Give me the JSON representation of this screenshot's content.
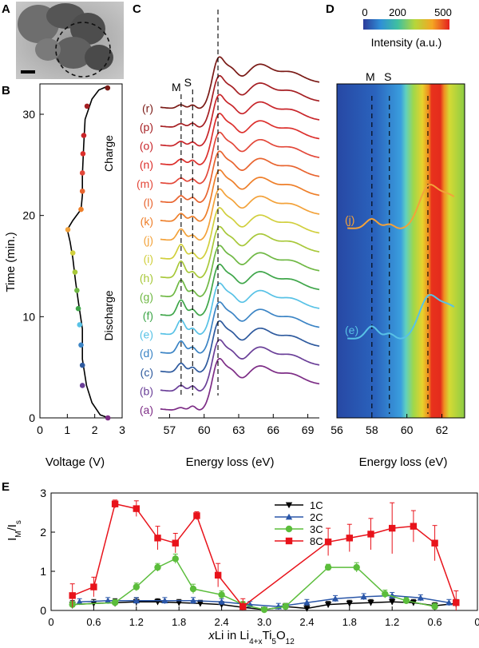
{
  "panel_labels": {
    "A": "A",
    "B": "B",
    "C": "C",
    "D": "D",
    "E": "E"
  },
  "colors": {
    "r": "#7a1a16",
    "p": "#a51f23",
    "o": "#c8252a",
    "n": "#dc2f2c",
    "m": "#e3483a",
    "l": "#e8642f",
    "k": "#ee7f2a",
    "j": "#f3a23a",
    "i": "#d1cf3d",
    "h": "#a8c83a",
    "g": "#6fb844",
    "f": "#3fa64a",
    "e": "#58c2e6",
    "d": "#3b84c5",
    "c": "#2e5a9e",
    "b": "#6a3f98",
    "a": "#7d2d86",
    "line_1C": "#000000",
    "line_2C": "#2a56a8",
    "line_3C": "#5bbd3b",
    "line_8C": "#e8131b"
  },
  "chart_data": [
    {
      "panel": "B",
      "type": "line",
      "xlabel": "Voltage (V)",
      "ylabel": "Time (min.)",
      "xlim": [
        0,
        3
      ],
      "ylim": [
        0,
        33
      ],
      "xticks": [
        0,
        1,
        2,
        3
      ],
      "yticks": [
        0,
        10,
        20,
        30
      ],
      "annotations": [
        "Charge",
        "Discharge"
      ],
      "curve": [
        [
          2.5,
          0.0
        ],
        [
          2.2,
          0.3
        ],
        [
          1.9,
          1.5
        ],
        [
          1.7,
          3.2
        ],
        [
          1.55,
          5.8
        ],
        [
          1.55,
          8.8
        ],
        [
          1.4,
          11.5
        ],
        [
          1.3,
          13.5
        ],
        [
          1.2,
          15.8
        ],
        [
          1.1,
          17.4
        ],
        [
          1.0,
          18.6
        ],
        [
          1.2,
          19.5
        ],
        [
          1.5,
          20.6
        ],
        [
          1.55,
          22.0
        ],
        [
          1.55,
          24.0
        ],
        [
          1.6,
          27.0
        ],
        [
          1.65,
          29.5
        ],
        [
          1.9,
          31.5
        ],
        [
          2.15,
          32.4
        ],
        [
          2.5,
          32.8
        ]
      ],
      "points": [
        {
          "v": 2.48,
          "t": 0.0,
          "c": "a"
        },
        {
          "v": 1.55,
          "t": 3.2,
          "c": "b"
        },
        {
          "v": 1.55,
          "t": 5.2,
          "c": "c"
        },
        {
          "v": 1.5,
          "t": 7.2,
          "c": "d"
        },
        {
          "v": 1.45,
          "t": 9.2,
          "c": "e"
        },
        {
          "v": 1.4,
          "t": 10.8,
          "c": "f"
        },
        {
          "v": 1.35,
          "t": 12.6,
          "c": "g"
        },
        {
          "v": 1.28,
          "t": 14.4,
          "c": "h"
        },
        {
          "v": 1.2,
          "t": 16.3,
          "c": "i"
        },
        {
          "v": 1.02,
          "t": 18.6,
          "c": "j"
        },
        {
          "v": 1.5,
          "t": 20.6,
          "c": "k"
        },
        {
          "v": 1.55,
          "t": 22.4,
          "c": "l"
        },
        {
          "v": 1.55,
          "t": 24.2,
          "c": "m"
        },
        {
          "v": 1.57,
          "t": 26.1,
          "c": "n"
        },
        {
          "v": 1.6,
          "t": 27.9,
          "c": "o"
        },
        {
          "v": 1.72,
          "t": 30.8,
          "c": "p"
        },
        {
          "v": 2.47,
          "t": 32.6,
          "c": "r"
        }
      ]
    },
    {
      "panel": "C",
      "type": "line",
      "xlabel": "Energy loss (eV)",
      "ylabel": "",
      "xlim": [
        56,
        70
      ],
      "xticks": [
        57,
        60,
        63,
        66,
        69
      ],
      "markers": [
        {
          "label": "M",
          "x": 58.0
        },
        {
          "label": "S",
          "x": 59.0
        },
        {
          "label": "",
          "x": 61.2
        }
      ],
      "series": [
        {
          "name": "(a)",
          "c": "a",
          "m": 0.15,
          "s": 0.25
        },
        {
          "name": "(b)",
          "c": "b",
          "m": 0.3,
          "s": 0.3
        },
        {
          "name": "(c)",
          "c": "c",
          "m": 0.45,
          "s": 0.3
        },
        {
          "name": "(d)",
          "c": "d",
          "m": 0.6,
          "s": 0.35
        },
        {
          "name": "(e)",
          "c": "e",
          "m": 0.7,
          "s": 0.35
        },
        {
          "name": "(f)",
          "c": "f",
          "m": 0.75,
          "s": 0.35
        },
        {
          "name": "(g)",
          "c": "g",
          "m": 0.8,
          "s": 0.35
        },
        {
          "name": "(h)",
          "c": "h",
          "m": 0.8,
          "s": 0.35
        },
        {
          "name": "(i)",
          "c": "i",
          "m": 0.7,
          "s": 0.35
        },
        {
          "name": "(j)",
          "c": "j",
          "m": 0.55,
          "s": 0.3
        },
        {
          "name": "(k)",
          "c": "k",
          "m": 0.4,
          "s": 0.3
        },
        {
          "name": "(l)",
          "c": "l",
          "m": 0.35,
          "s": 0.3
        },
        {
          "name": "(m)",
          "c": "m",
          "m": 0.3,
          "s": 0.28
        },
        {
          "name": "(n)",
          "c": "n",
          "m": 0.3,
          "s": 0.28
        },
        {
          "name": "(o)",
          "c": "o",
          "m": 0.25,
          "s": 0.25
        },
        {
          "name": "(p)",
          "c": "p",
          "m": 0.2,
          "s": 0.25
        },
        {
          "name": "(r)",
          "c": "r",
          "m": 0.2,
          "s": 0.22
        }
      ]
    },
    {
      "panel": "D",
      "type": "heatmap",
      "xlabel": "Energy loss (eV)",
      "xlim": [
        56,
        63.3
      ],
      "xticks": [
        56,
        58,
        60,
        62
      ],
      "colorbar": {
        "label": "Intensity (a.u.)",
        "ticks": [
          0,
          200,
          500
        ]
      },
      "markers": [
        {
          "label": "M",
          "x": 58.0
        },
        {
          "label": "S",
          "x": 59.0
        },
        {
          "label": "",
          "x": 61.2
        }
      ],
      "overlays": [
        {
          "name": "(j)",
          "c": "j"
        },
        {
          "name": "(e)",
          "c": "e"
        }
      ]
    },
    {
      "panel": "E",
      "type": "line",
      "xlabel": "xLi in Li4+xTi5O12",
      "ylabel": "IM/Is",
      "xlim": [
        0,
        6
      ],
      "ylim": [
        0,
        3
      ],
      "xtick_labels": [
        "0",
        "0.6",
        "1.2",
        "1.8",
        "2.4",
        "3.0",
        "2.4",
        "1.8",
        "1.2",
        "0.6",
        "0"
      ],
      "yticks": [
        0,
        1,
        2,
        3
      ],
      "series": [
        {
          "name": "1C",
          "c": "line_1C",
          "marker": "triangle-down",
          "x": [
            0.3,
            0.6,
            0.9,
            1.2,
            1.5,
            1.8,
            2.1,
            2.4,
            2.7,
            3.0,
            3.3,
            3.6,
            3.9,
            4.2,
            4.5,
            4.8,
            5.1,
            5.4,
            5.7
          ],
          "y": [
            0.15,
            0.18,
            0.2,
            0.22,
            0.22,
            0.2,
            0.18,
            0.15,
            0.08,
            0.02,
            0.1,
            0.05,
            0.15,
            0.18,
            0.2,
            0.22,
            0.2,
            0.12,
            0.18
          ],
          "err": [
            0.1,
            0.1,
            0.1,
            0.1,
            0.08,
            0.08,
            0.08,
            0.08,
            0.08,
            0.05,
            0.08,
            0.08,
            0.08,
            0.08,
            0.08,
            0.08,
            0.08,
            0.08,
            0.1
          ]
        },
        {
          "name": "2C",
          "c": "line_2C",
          "marker": "triangle-up",
          "x": [
            0.4,
            0.8,
            1.2,
            1.6,
            2.0,
            2.4,
            2.8,
            3.2,
            3.6,
            4.0,
            4.4,
            4.8,
            5.2,
            5.6
          ],
          "y": [
            0.22,
            0.25,
            0.25,
            0.25,
            0.25,
            0.22,
            0.15,
            0.1,
            0.2,
            0.3,
            0.35,
            0.38,
            0.32,
            0.2
          ],
          "err": [
            0.08,
            0.08,
            0.08,
            0.08,
            0.08,
            0.08,
            0.08,
            0.08,
            0.08,
            0.08,
            0.08,
            0.08,
            0.08,
            0.08
          ]
        },
        {
          "name": "3C",
          "c": "line_3C",
          "marker": "circle",
          "x": [
            0.3,
            0.9,
            1.2,
            1.5,
            1.75,
            2.0,
            2.4,
            2.7,
            3.0,
            3.3,
            3.9,
            4.3,
            4.7,
            5.0,
            5.4
          ],
          "y": [
            0.15,
            0.2,
            0.6,
            1.1,
            1.32,
            0.55,
            0.4,
            0.15,
            0.02,
            0.1,
            1.1,
            1.1,
            0.42,
            0.25,
            0.1
          ],
          "err": [
            0.08,
            0.08,
            0.1,
            0.1,
            0.12,
            0.12,
            0.1,
            0.08,
            0.05,
            0.08,
            0.08,
            0.12,
            0.1,
            0.08,
            0.08
          ]
        },
        {
          "name": "8C",
          "c": "line_8C",
          "marker": "square",
          "x": [
            0.3,
            0.6,
            0.9,
            1.2,
            1.5,
            1.75,
            2.05,
            2.35,
            2.7,
            3.9,
            4.2,
            4.5,
            4.8,
            5.1,
            5.4,
            5.7
          ],
          "y": [
            0.38,
            0.6,
            2.72,
            2.6,
            1.85,
            1.72,
            2.42,
            0.9,
            0.1,
            1.75,
            1.85,
            1.95,
            2.1,
            2.15,
            1.72,
            0.2
          ],
          "err": [
            0.3,
            0.25,
            0.1,
            0.2,
            0.3,
            0.25,
            0.1,
            0.3,
            0.2,
            0.35,
            0.35,
            0.4,
            0.65,
            0.4,
            0.45,
            0.3
          ]
        }
      ]
    }
  ]
}
